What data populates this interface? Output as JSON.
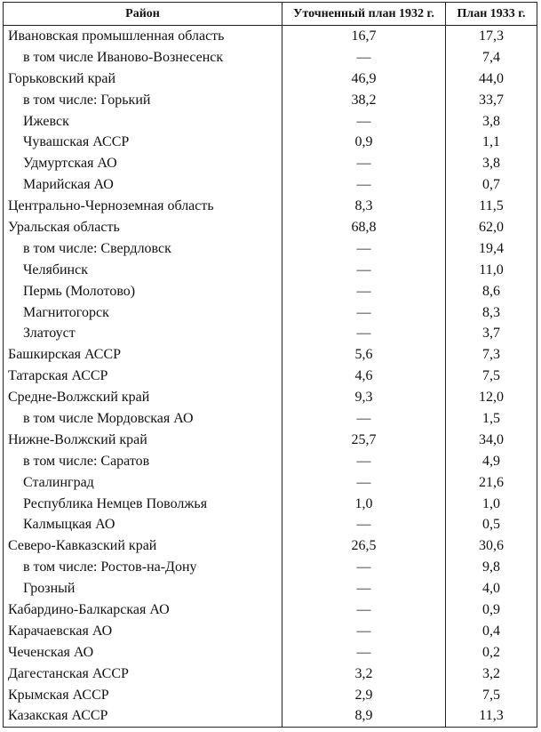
{
  "table": {
    "header": [
      "Район",
      "Уточненный план 1932 г.",
      "План 1933 г."
    ],
    "rows": [
      {
        "cells": [
          "Ивановская промышленная область",
          "16,7",
          "17,3"
        ],
        "sub": [
          [
            "в том числе Иваново-Вознесенск",
            "—",
            "7,4"
          ]
        ]
      },
      {
        "cells": [
          "Горьковский край",
          "46,9",
          "44,0"
        ],
        "sub": [
          [
            "в том числе: Горький",
            "38,2",
            "33,7"
          ],
          [
            "Ижевск",
            "—",
            "3,8"
          ],
          [
            "Чувашская АССР",
            "0,9",
            "1,1"
          ],
          [
            "Удмуртская АО",
            "—",
            "3,8"
          ],
          [
            "Марийская АО",
            "—",
            "0,7"
          ]
        ]
      },
      {
        "cells": [
          "Центрально-Черноземная область",
          "8,3",
          "11,5"
        ],
        "sub": []
      },
      {
        "cells": [
          "Уральская область",
          "68,8",
          "62,0"
        ],
        "sub": [
          [
            "в том числе: Свердловск",
            "—",
            "19,4"
          ],
          [
            "Челябинск",
            "—",
            "11,0"
          ],
          [
            "Пермь (Молотово)",
            "—",
            "8,6"
          ],
          [
            "Магнитогорск",
            "—",
            "8,3"
          ],
          [
            "Златоуст",
            "—",
            "3,7"
          ]
        ]
      },
      {
        "cells": [
          "Башкирская АССР",
          "5,6",
          "7,3"
        ],
        "sub": []
      },
      {
        "cells": [
          "Татарская АССР",
          "4,6",
          "7,5"
        ],
        "sub": []
      },
      {
        "cells": [
          "Средне-Волжский край",
          "9,3",
          "12,0"
        ],
        "sub": [
          [
            "в том числе Мордовская АО",
            "—",
            "1,5"
          ]
        ]
      },
      {
        "cells": [
          "Нижне-Волжский край",
          "25,7",
          "34,0"
        ],
        "sub": [
          [
            "в том числе: Саратов",
            "—",
            "4,9"
          ],
          [
            "Сталинград",
            "—",
            "21,6"
          ],
          [
            "Республика Немцев Поволжья",
            "1,0",
            "1,0"
          ],
          [
            "Калмыцкая АО",
            "—",
            "0,5"
          ]
        ]
      },
      {
        "cells": [
          "Северо-Кавказский край",
          "26,5",
          "30,6"
        ],
        "sub": [
          [
            "в том числе: Ростов-на-Дону",
            "—",
            "9,8"
          ],
          [
            "Грозный",
            "—",
            "4,0"
          ]
        ]
      },
      {
        "cells": [
          "Кабардино-Балкарская АО",
          "—",
          "0,9"
        ],
        "sub": []
      },
      {
        "cells": [
          "Карачаевская АО",
          "—",
          "0,4"
        ],
        "sub": []
      },
      {
        "cells": [
          "Чеченская АО",
          "—",
          "0,2"
        ],
        "sub": []
      },
      {
        "cells": [
          "Дагестанская АССР",
          "3,2",
          "3,2"
        ],
        "sub": []
      },
      {
        "cells": [
          "Крымская АССР",
          "2,9",
          "7,5"
        ],
        "sub": []
      },
      {
        "cells": [
          "Казакская АССР",
          "8,9",
          "11,3"
        ],
        "sub": []
      }
    ]
  }
}
